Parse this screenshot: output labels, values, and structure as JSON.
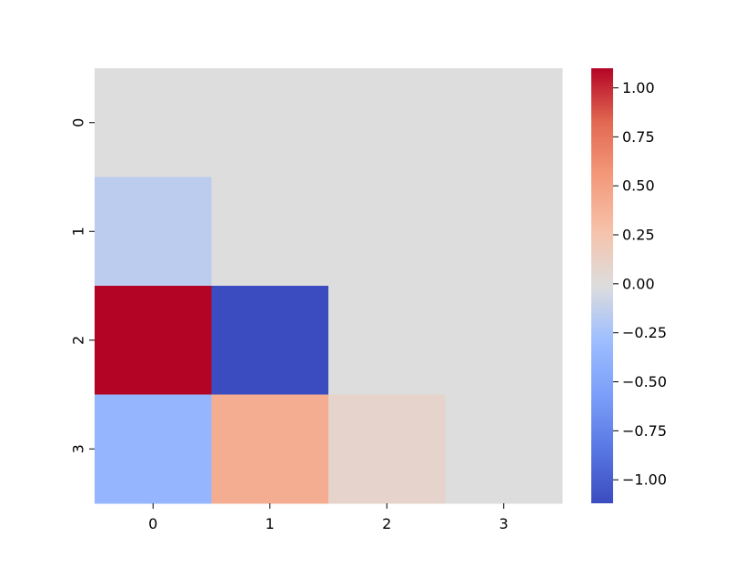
{
  "chart_data": {
    "type": "heatmap",
    "title": "",
    "xlabel": "",
    "ylabel": "",
    "x_categories": [
      "0",
      "1",
      "2",
      "3"
    ],
    "y_categories": [
      "0",
      "1",
      "2",
      "3"
    ],
    "values": [
      [
        0.0,
        0.0,
        0.0,
        0.0
      ],
      [
        -0.15,
        0.0,
        0.0,
        0.0
      ],
      [
        1.1,
        -1.12,
        0.0,
        0.0
      ],
      [
        -0.35,
        0.42,
        0.1,
        0.0
      ]
    ],
    "vmin": -1.12,
    "vmax": 1.1,
    "colormap": "coolwarm",
    "colorbar": {
      "ticks": [
        1.0,
        0.75,
        0.5,
        0.25,
        0.0,
        -0.25,
        -0.5,
        -0.75,
        -1.0
      ],
      "tick_labels": [
        "1.00",
        "0.75",
        "0.50",
        "0.25",
        "0.00",
        "−0.25",
        "−0.50",
        "−0.75",
        "−1.00"
      ]
    },
    "grid": false
  }
}
